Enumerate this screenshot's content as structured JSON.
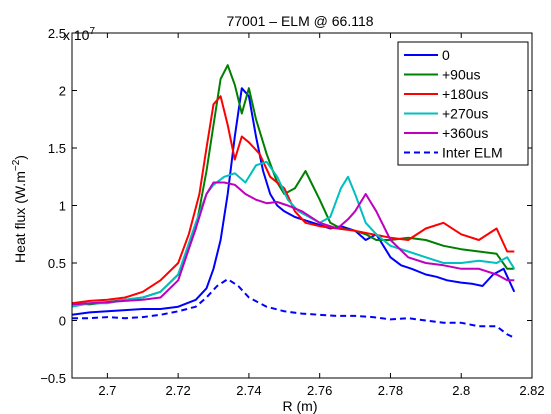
{
  "chart_data": {
    "type": "line",
    "title": "77001 – ELM @ 66.118",
    "xlabel": "R (m)",
    "ylabel_main": "Heat flux (W.m",
    "ylabel_exp": "−2",
    "ylabel_close": ")",
    "y_multiplier_base": "x 10",
    "y_multiplier_exp": "7",
    "xlim": [
      2.69,
      2.82
    ],
    "ylim": [
      -0.5,
      2.5
    ],
    "xticks": [
      2.7,
      2.72,
      2.74,
      2.76,
      2.78,
      2.8,
      2.82
    ],
    "xtick_labels": [
      "2.7",
      "2.72",
      "2.74",
      "2.76",
      "2.78",
      "2.8",
      "2.82"
    ],
    "yticks": [
      -0.5,
      0,
      0.5,
      1,
      1.5,
      2,
      2.5
    ],
    "ytick_labels": [
      "−0.5",
      "0",
      "0.5",
      "1",
      "1.5",
      "2",
      "2.5"
    ],
    "grid": false,
    "legend_position": "top-right",
    "series": [
      {
        "name": "0",
        "color": "#0000ff",
        "dash": "solid",
        "x": [
          2.69,
          2.695,
          2.7,
          2.705,
          2.71,
          2.715,
          2.72,
          2.725,
          2.728,
          2.73,
          2.732,
          2.734,
          2.736,
          2.738,
          2.74,
          2.742,
          2.744,
          2.746,
          2.748,
          2.75,
          2.753,
          2.756,
          2.76,
          2.763,
          2.766,
          2.77,
          2.773,
          2.776,
          2.778,
          2.78,
          2.783,
          2.786,
          2.79,
          2.793,
          2.796,
          2.8,
          2.803,
          2.806,
          2.809,
          2.812,
          2.815
        ],
        "y": [
          0.05,
          0.07,
          0.08,
          0.09,
          0.1,
          0.1,
          0.12,
          0.18,
          0.28,
          0.45,
          0.7,
          1.1,
          1.6,
          2.02,
          1.95,
          1.6,
          1.3,
          1.1,
          1.0,
          0.95,
          0.9,
          0.87,
          0.83,
          0.8,
          0.82,
          0.78,
          0.7,
          0.75,
          0.65,
          0.55,
          0.48,
          0.45,
          0.4,
          0.38,
          0.35,
          0.33,
          0.32,
          0.3,
          0.4,
          0.45,
          0.25
        ]
      },
      {
        "name": "+90us",
        "color": "#008000",
        "dash": "solid",
        "x": [
          2.69,
          2.695,
          2.7,
          2.705,
          2.71,
          2.715,
          2.72,
          2.725,
          2.728,
          2.73,
          2.732,
          2.734,
          2.736,
          2.738,
          2.74,
          2.742,
          2.745,
          2.748,
          2.75,
          2.753,
          2.756,
          2.76,
          2.763,
          2.766,
          2.77,
          2.773,
          2.776,
          2.78,
          2.785,
          2.79,
          2.795,
          2.8,
          2.805,
          2.81,
          2.813,
          2.815
        ],
        "y": [
          0.15,
          0.14,
          0.16,
          0.18,
          0.2,
          0.25,
          0.4,
          0.8,
          1.3,
          1.7,
          2.1,
          2.22,
          2.05,
          1.8,
          2.02,
          1.75,
          1.45,
          1.2,
          1.1,
          1.15,
          1.3,
          1.05,
          0.85,
          0.8,
          0.78,
          0.75,
          0.7,
          0.7,
          0.72,
          0.7,
          0.65,
          0.62,
          0.6,
          0.58,
          0.45,
          0.45
        ]
      },
      {
        "name": "+180us",
        "color": "#ff0000",
        "dash": "solid",
        "x": [
          2.69,
          2.695,
          2.7,
          2.705,
          2.71,
          2.715,
          2.72,
          2.723,
          2.726,
          2.728,
          2.73,
          2.732,
          2.734,
          2.736,
          2.738,
          2.74,
          2.743,
          2.746,
          2.75,
          2.753,
          2.756,
          2.76,
          2.765,
          2.77,
          2.775,
          2.78,
          2.785,
          2.79,
          2.795,
          2.8,
          2.805,
          2.81,
          2.813,
          2.815
        ],
        "y": [
          0.15,
          0.17,
          0.18,
          0.2,
          0.25,
          0.35,
          0.5,
          0.75,
          1.1,
          1.5,
          1.88,
          1.95,
          1.7,
          1.4,
          1.6,
          1.55,
          1.45,
          1.25,
          1.15,
          0.95,
          0.85,
          0.82,
          0.8,
          0.78,
          0.75,
          0.72,
          0.7,
          0.8,
          0.85,
          0.75,
          0.7,
          0.8,
          0.6,
          0.6
        ]
      },
      {
        "name": "+270us",
        "color": "#00bfbf",
        "dash": "solid",
        "x": [
          2.69,
          2.695,
          2.7,
          2.705,
          2.71,
          2.715,
          2.72,
          2.725,
          2.728,
          2.73,
          2.733,
          2.736,
          2.739,
          2.742,
          2.745,
          2.748,
          2.751,
          2.754,
          2.757,
          2.76,
          2.763,
          2.766,
          2.768,
          2.77,
          2.773,
          2.776,
          2.78,
          2.785,
          2.79,
          2.795,
          2.8,
          2.805,
          2.81,
          2.813,
          2.815
        ],
        "y": [
          0.12,
          0.15,
          0.15,
          0.18,
          0.2,
          0.25,
          0.4,
          0.85,
          1.1,
          1.18,
          1.25,
          1.28,
          1.2,
          1.35,
          1.38,
          1.25,
          1.05,
          0.95,
          0.9,
          0.85,
          0.9,
          1.15,
          1.25,
          1.1,
          0.85,
          0.75,
          0.65,
          0.6,
          0.55,
          0.5,
          0.5,
          0.52,
          0.5,
          0.55,
          0.45
        ]
      },
      {
        "name": "+360us",
        "color": "#bf00bf",
        "dash": "solid",
        "x": [
          2.69,
          2.695,
          2.7,
          2.705,
          2.71,
          2.715,
          2.72,
          2.725,
          2.728,
          2.73,
          2.733,
          2.736,
          2.739,
          2.742,
          2.745,
          2.748,
          2.751,
          2.755,
          2.76,
          2.765,
          2.768,
          2.77,
          2.773,
          2.776,
          2.78,
          2.785,
          2.79,
          2.795,
          2.8,
          2.805,
          2.81,
          2.813,
          2.815
        ],
        "y": [
          0.14,
          0.15,
          0.16,
          0.17,
          0.18,
          0.2,
          0.35,
          0.8,
          1.1,
          1.2,
          1.2,
          1.18,
          1.1,
          1.05,
          1.02,
          1.03,
          1.0,
          0.95,
          0.85,
          0.8,
          0.88,
          0.95,
          1.1,
          0.95,
          0.7,
          0.55,
          0.5,
          0.48,
          0.45,
          0.45,
          0.4,
          0.35,
          0.35
        ]
      },
      {
        "name": "Inter ELM",
        "color": "#0000ff",
        "dash": "dashed",
        "x": [
          2.69,
          2.695,
          2.7,
          2.705,
          2.71,
          2.715,
          2.72,
          2.725,
          2.728,
          2.731,
          2.734,
          2.737,
          2.74,
          2.745,
          2.75,
          2.755,
          2.76,
          2.765,
          2.77,
          2.775,
          2.78,
          2.785,
          2.79,
          2.795,
          2.8,
          2.805,
          2.81,
          2.813,
          2.815
        ],
        "y": [
          0.02,
          0.02,
          0.03,
          0.02,
          0.03,
          0.05,
          0.08,
          0.12,
          0.2,
          0.3,
          0.36,
          0.3,
          0.2,
          0.12,
          0.08,
          0.06,
          0.05,
          0.04,
          0.04,
          0.03,
          0.01,
          0.02,
          0.0,
          -0.02,
          -0.02,
          -0.05,
          -0.05,
          -0.12,
          -0.15
        ]
      }
    ]
  }
}
